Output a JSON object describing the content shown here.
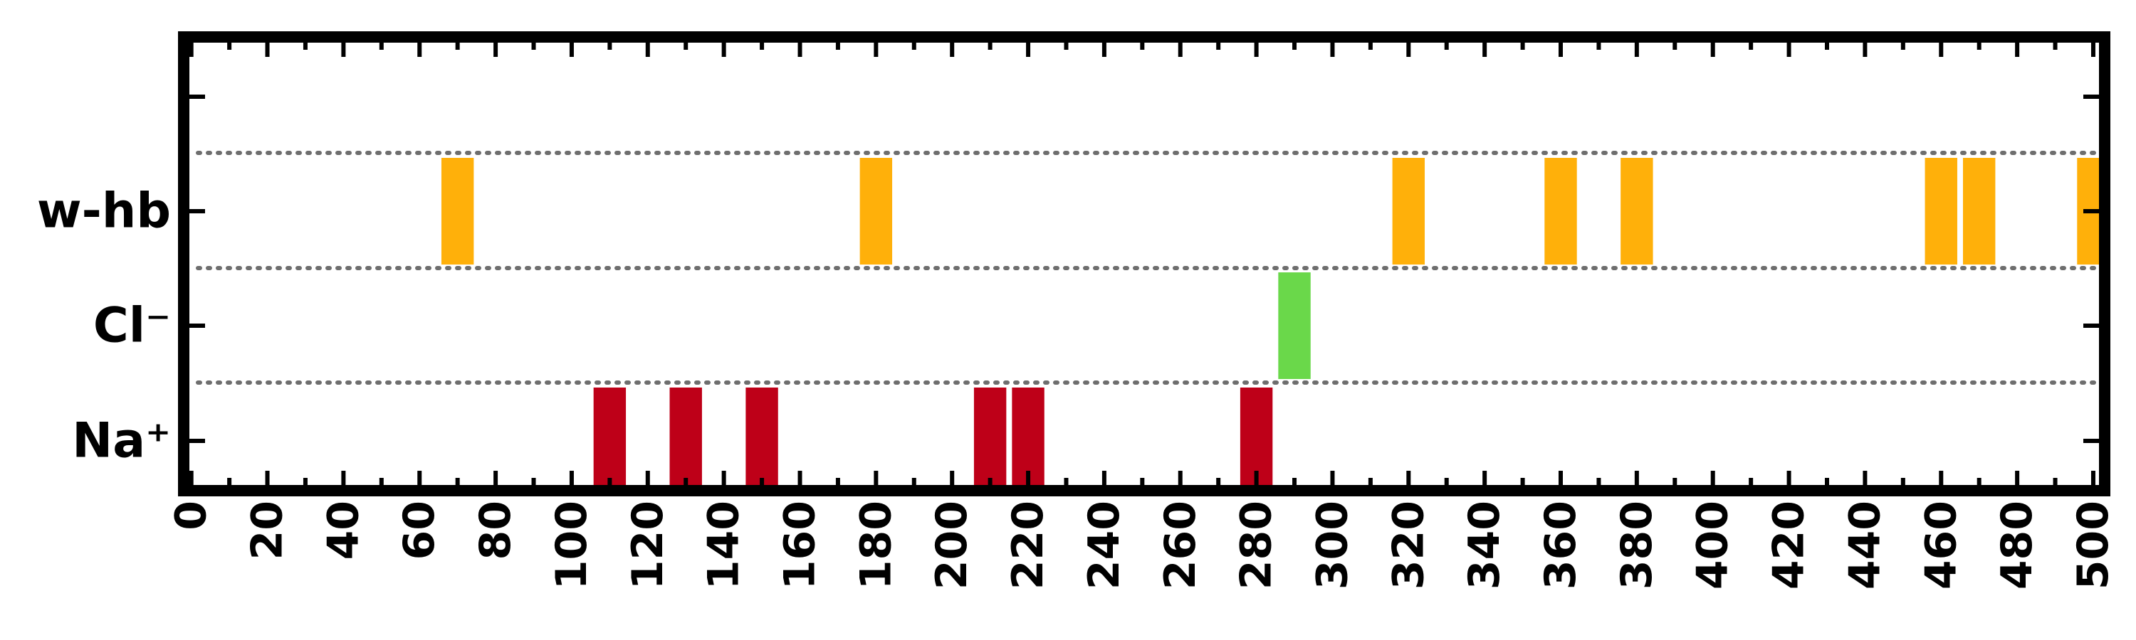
{
  "chart_data": {
    "type": "bar",
    "title": "",
    "xlabel": "",
    "ylabel": "",
    "xlim": [
      -2,
      503
    ],
    "xticks": [
      0,
      20,
      40,
      60,
      80,
      100,
      120,
      140,
      160,
      180,
      200,
      220,
      240,
      260,
      280,
      300,
      320,
      340,
      360,
      380,
      400,
      420,
      440,
      460,
      480,
      500
    ],
    "minor_xticks_every": 10,
    "xtick_rotation": 90,
    "grid": false,
    "row_separators": "dotted",
    "rows": [
      {
        "label": "w-hb",
        "tick_label": "w-hb",
        "color": "#FFB00A",
        "events": [
          70,
          180,
          320,
          360,
          380,
          460,
          470,
          500
        ]
      },
      {
        "label": "Cl-",
        "tick_label": "Cl⁻",
        "color": "#6AD84A",
        "events": [
          290
        ]
      },
      {
        "label": "Na+",
        "tick_label": "Na⁺",
        "color": "#BE0018",
        "events": [
          110,
          130,
          150,
          210,
          220,
          280
        ]
      }
    ],
    "event_width": 8.5
  }
}
